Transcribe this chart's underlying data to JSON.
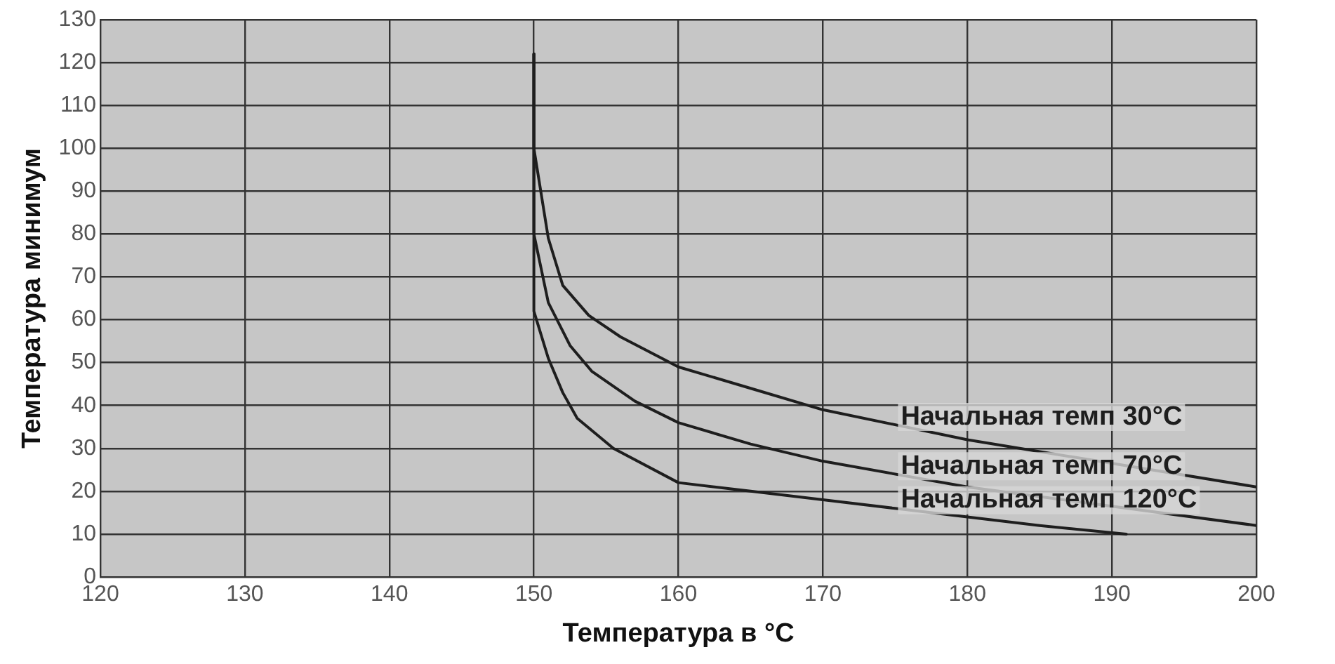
{
  "chart_data": {
    "type": "line",
    "xlabel": "Температура в °C",
    "ylabel": "Температура минимум",
    "xlim": [
      120,
      200
    ],
    "xticks": [
      120,
      130,
      140,
      150,
      160,
      170,
      180,
      190,
      200
    ],
    "ylim": [
      0,
      130
    ],
    "yticks": [
      0,
      10,
      20,
      30,
      40,
      50,
      60,
      70,
      80,
      90,
      100,
      110,
      120,
      130
    ],
    "grid": true,
    "legend": false,
    "marker": "none",
    "line_style": "solid",
    "series": [
      {
        "name": "Начальная темп 30°C",
        "color": "#1e1e1e",
        "x": [
          150,
          150,
          151,
          152,
          153.8,
          156,
          160,
          165,
          170,
          180,
          200
        ],
        "values": [
          122,
          100,
          79,
          68,
          61,
          56,
          49,
          44,
          39,
          32,
          21
        ]
      },
      {
        "name": "Начальная темп 70°C",
        "color": "#1e1e1e",
        "x": [
          150,
          150,
          151,
          152.5,
          154,
          157,
          160,
          165,
          170,
          180,
          200
        ],
        "values": [
          122,
          80,
          64,
          54,
          48,
          41,
          36,
          31,
          27,
          21,
          12
        ]
      },
      {
        "name": "Начальная темп 120°C",
        "color": "#1e1e1e",
        "x": [
          150,
          150,
          151,
          152,
          153,
          155.5,
          160,
          165,
          170,
          175,
          180,
          185,
          191
        ],
        "values": [
          122,
          62,
          51,
          43,
          37,
          30,
          22,
          20,
          18,
          16,
          14,
          12,
          10
        ]
      }
    ]
  }
}
